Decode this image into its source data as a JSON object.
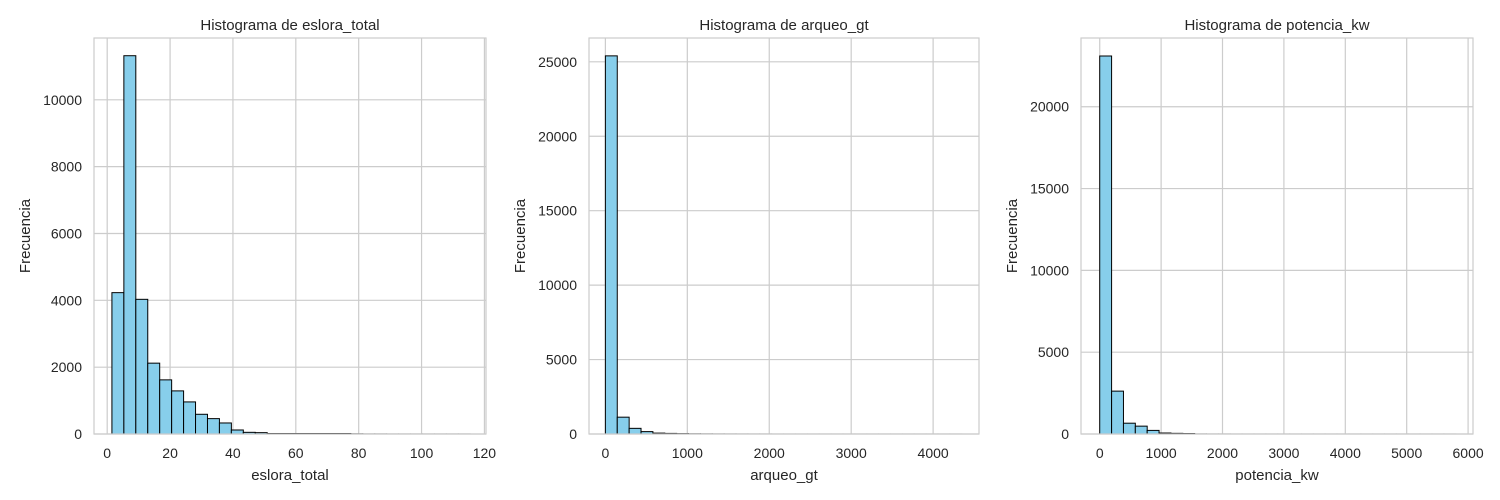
{
  "figure": {
    "background": "#ffffff"
  },
  "style": {
    "bar_fill": "#87ceeb",
    "bar_edge": "#000000",
    "grid_color": "#cccccc",
    "spine_color": "#cccccc",
    "text_color": "#262626"
  },
  "chart_data": [
    {
      "type": "bar",
      "title": "Histograma de eslora_total",
      "xlabel": "eslora_total",
      "ylabel": "Frecuencia",
      "xlim": [
        -4.2,
        120.5
      ],
      "ylim": [
        0,
        11850
      ],
      "xticks": [
        0,
        20,
        40,
        60,
        80,
        100,
        120
      ],
      "xtick_labels": [
        "0",
        "20",
        "40",
        "60",
        "80",
        "100",
        "120"
      ],
      "yticks": [
        0,
        2000,
        4000,
        6000,
        8000,
        10000
      ],
      "ytick_labels": [
        "0",
        "2000",
        "4000",
        "6000",
        "8000",
        "10000"
      ],
      "grid": true,
      "bins": {
        "start": 1.5,
        "width": 3.8
      },
      "values": [
        4230,
        11320,
        4030,
        2120,
        1620,
        1290,
        960,
        590,
        460,
        330,
        120,
        50,
        40,
        15,
        15,
        15,
        15,
        15,
        15,
        15,
        5,
        2,
        2,
        1,
        1,
        1,
        1,
        1,
        1,
        1
      ]
    },
    {
      "type": "bar",
      "title": "Histograma de arqueo_gt",
      "xlabel": "arqueo_gt",
      "ylabel": "Frecuencia",
      "xlim": [
        -200,
        4560
      ],
      "ylim": [
        0,
        26600
      ],
      "xticks": [
        0,
        1000,
        2000,
        3000,
        4000
      ],
      "xtick_labels": [
        "0",
        "1000",
        "2000",
        "3000",
        "4000"
      ],
      "yticks": [
        0,
        5000,
        10000,
        15000,
        20000,
        25000
      ],
      "ytick_labels": [
        "0",
        "5000",
        "10000",
        "15000",
        "20000",
        "25000"
      ],
      "grid": true,
      "bins": {
        "start": 0,
        "width": 145
      },
      "values": [
        25400,
        1130,
        380,
        160,
        60,
        40,
        25,
        12,
        8,
        5,
        4,
        3,
        2,
        2,
        1,
        1,
        1,
        1,
        1,
        1,
        1,
        1,
        1,
        1,
        1,
        1,
        1,
        1,
        1,
        1
      ]
    },
    {
      "type": "bar",
      "title": "Histograma de potencia_kw",
      "xlabel": "potencia_kw",
      "ylabel": "Frecuencia",
      "xlim": [
        -305,
        6080
      ],
      "ylim": [
        0,
        24200
      ],
      "xticks": [
        0,
        1000,
        2000,
        3000,
        4000,
        5000,
        6000
      ],
      "xtick_labels": [
        "0",
        "1000",
        "2000",
        "3000",
        "4000",
        "5000",
        "6000"
      ],
      "yticks": [
        0,
        5000,
        10000,
        15000,
        20000
      ],
      "ytick_labels": [
        "0",
        "5000",
        "10000",
        "15000",
        "20000"
      ],
      "grid": true,
      "bins": {
        "start": 0,
        "width": 193.3
      },
      "values": [
        23100,
        2620,
        660,
        480,
        220,
        60,
        40,
        30,
        4,
        2,
        2,
        1,
        1,
        1,
        1,
        1,
        1,
        1,
        1,
        1,
        1,
        1,
        1,
        1,
        1,
        1,
        1,
        1,
        1,
        1
      ]
    }
  ]
}
